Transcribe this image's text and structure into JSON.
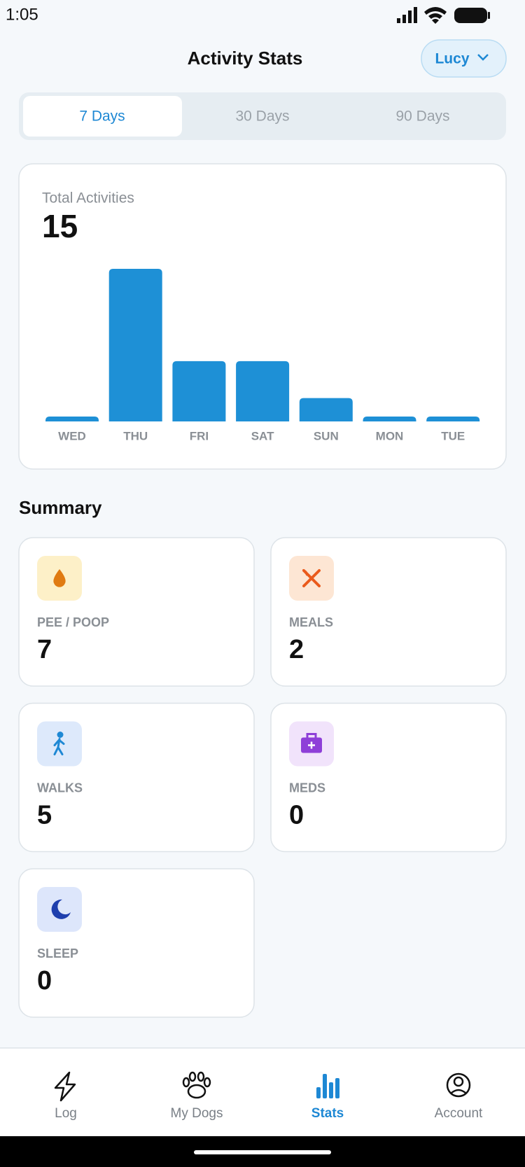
{
  "status_bar": {
    "time": "1:05"
  },
  "header": {
    "title": "Activity Stats",
    "dog": "Lucy"
  },
  "tabs": [
    "7 Days",
    "30 Days",
    "90 Days"
  ],
  "chart_data": {
    "type": "bar",
    "title": "Total Activities",
    "total": 15,
    "categories": [
      "WED",
      "THU",
      "FRI",
      "SAT",
      "SUN",
      "MON",
      "TUE"
    ],
    "values": [
      0,
      8,
      3,
      3,
      1,
      0,
      0
    ],
    "color": "#1e90d6",
    "ylim": [
      0,
      8
    ]
  },
  "summary": {
    "title": "Summary",
    "items": [
      {
        "label": "PEE / POOP",
        "value": 7
      },
      {
        "label": "MEALS",
        "value": 2
      },
      {
        "label": "WALKS",
        "value": 5
      },
      {
        "label": "MEDS",
        "value": 0
      },
      {
        "label": "SLEEP",
        "value": 0
      }
    ]
  },
  "nav": [
    "Log",
    "My Dogs",
    "Stats",
    "Account"
  ]
}
